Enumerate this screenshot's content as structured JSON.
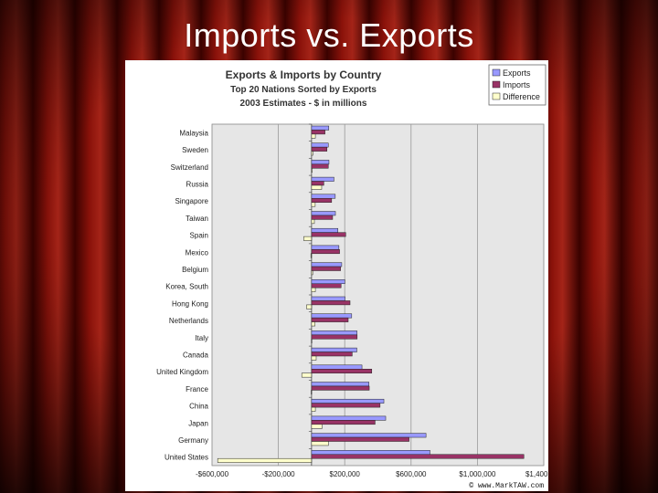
{
  "slide": {
    "title": "Imports vs. Exports",
    "colors": {
      "curtain_dark": "#2a0000",
      "curtain_mid": "#7a0a06",
      "curtain_light": "#a8251a",
      "text": "#ffffff"
    }
  },
  "chart_data": {
    "type": "bar",
    "orientation": "horizontal",
    "title": "Exports & Imports by Country",
    "subtitle1": "Top 20 Nations Sorted by Exports",
    "subtitle2": "2003 Estimates - $ in millions",
    "categories": [
      "Malaysia",
      "Sweden",
      "Switzerland",
      "Russia",
      "Singapore",
      "Taiwan",
      "Spain",
      "Mexico",
      "Belgium",
      "Korea, South",
      "Hong Kong",
      "Netherlands",
      "Italy",
      "Canada",
      "United Kingdom",
      "France",
      "China",
      "Japan",
      "Germany",
      "United States"
    ],
    "series": [
      {
        "name": "Exports",
        "color": "#9999ff",
        "values": [
          104,
          101,
          105,
          135,
          143,
          144,
          159,
          165,
          182,
          201,
          202,
          242,
          274,
          273,
          304,
          346,
          436,
          447,
          690,
          714
        ]
      },
      {
        "name": "Imports",
        "color": "#993366",
        "values": [
          81,
          93,
          101,
          74,
          121,
          127,
          206,
          169,
          175,
          178,
          232,
          221,
          275,
          245,
          363,
          348,
          413,
          383,
          588,
          1280
        ]
      },
      {
        "name": "Difference",
        "color": "#ffffcc",
        "values": [
          23,
          8,
          4,
          61,
          22,
          17,
          -47,
          -4,
          7,
          23,
          -30,
          21,
          -1,
          28,
          -59,
          -2,
          23,
          64,
          102,
          -566
        ]
      }
    ],
    "xlim": [
      -600000,
      1400000
    ],
    "xticks": [
      -600000,
      -200000,
      200000,
      600000,
      1000000,
      1400000
    ],
    "xtick_labels": [
      "-$600,000",
      "-$200,000",
      "$200,000",
      "$600,000",
      "$1,000,000",
      "$1,400,000"
    ],
    "xlabel": "",
    "ylabel": "",
    "gridlines": true,
    "legend": "top-right",
    "credit": "© www.MarkTAW.com",
    "value_units_note": "values in thousands of millions scale: multiply by 1000"
  }
}
